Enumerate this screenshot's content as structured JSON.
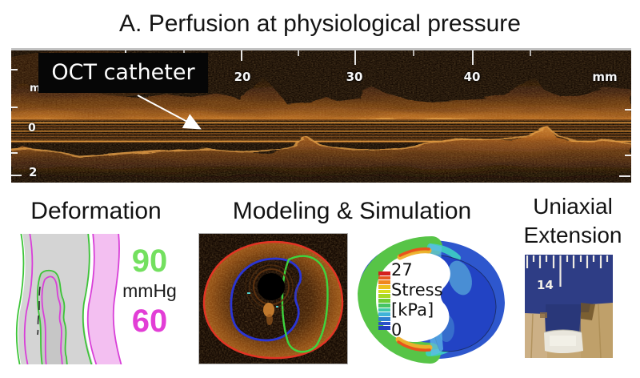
{
  "figure": {
    "title": "A. Perfusion at physiological pressure"
  },
  "oct_panel": {
    "catheter_label": "OCT catheter",
    "ruler_labels": [
      "20",
      "30",
      "40",
      "mm"
    ],
    "depth_labels": [
      "m",
      "0",
      "2"
    ]
  },
  "deformation": {
    "title": "Deformation",
    "pressure_high": "90",
    "pressure_unit": "mmHg",
    "pressure_low": "60",
    "colors": {
      "high_pressure": "#73e05f",
      "low_pressure": "#e23ed6",
      "contour_green": "#3cc437",
      "contour_magenta": "#d83fd8",
      "fill_pink": "#f3bff1"
    }
  },
  "modeling": {
    "title": "Modeling & Simulation",
    "contour_colors": {
      "outer_wall": "#e23424",
      "lumen": "#2a35d4",
      "plaque": "#3ed43e"
    },
    "stress_colorbar": {
      "max_label": "27",
      "quantity": "Stress",
      "unit": "[kPa]",
      "min_label": "0",
      "colors": [
        "#d41f1f",
        "#e5571e",
        "#f0861e",
        "#eec01f",
        "#d6de20",
        "#a6d827",
        "#6ecb35",
        "#46c463",
        "#3fc9a8",
        "#3fb3d8",
        "#2f7fd0",
        "#2a52c8",
        "#2340bf"
      ]
    }
  },
  "uniaxial": {
    "title_line1": "Uniaxial",
    "title_line2": "Extension",
    "ruler_number": "14"
  }
}
